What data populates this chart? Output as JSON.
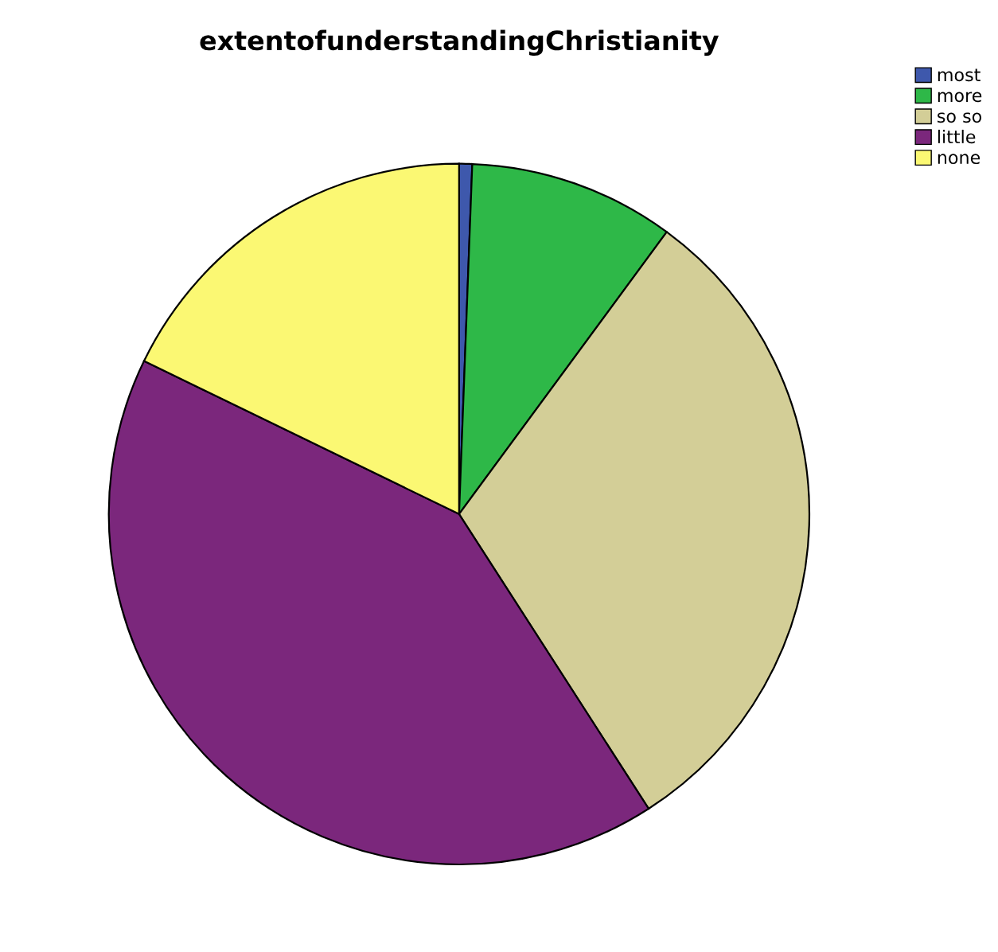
{
  "chart_data": {
    "type": "pie",
    "title": "extentofunderstandingChristianity",
    "categories": [
      "most",
      "more",
      "so so",
      "little",
      "none"
    ],
    "values": [
      0.6,
      9.5,
      30.8,
      41.3,
      17.8
    ],
    "colors": [
      "#3e58ac",
      "#2eb848",
      "#d3ce97",
      "#7b277c",
      "#fbf873"
    ],
    "legend": "top right"
  }
}
